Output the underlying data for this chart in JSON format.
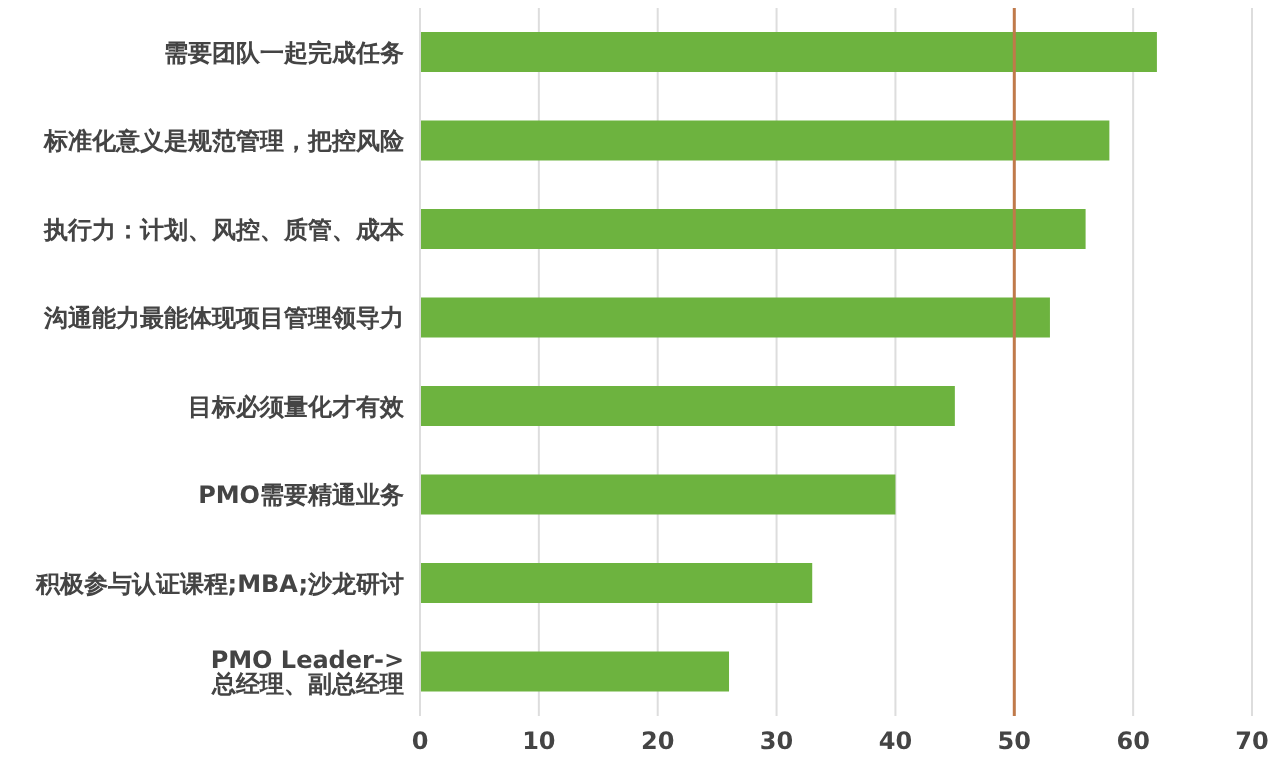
{
  "chart_data": {
    "type": "bar",
    "orientation": "horizontal",
    "categories": [
      "需要团队一起完成任务",
      "标准化意义是规范管理，把控风险",
      "执行力：计划、风控、质管、成本",
      "沟通能力最能体现项目管理领导力",
      "目标必须量化才有效",
      "PMO需要精通业务",
      "积极参与认证课程;MBA;沙龙研讨",
      "PMO Leader-> 总经理、副总经理"
    ],
    "values": [
      62,
      58,
      56,
      53,
      45,
      40,
      33,
      26
    ],
    "color": "#6db33f",
    "xlim": [
      0,
      70
    ],
    "xticks": [
      0,
      10,
      20,
      30,
      40,
      50,
      60,
      70
    ],
    "grid": "x",
    "ref_lines": [
      {
        "axis": "x",
        "value": 50,
        "color": "#c07a4a"
      }
    ]
  }
}
